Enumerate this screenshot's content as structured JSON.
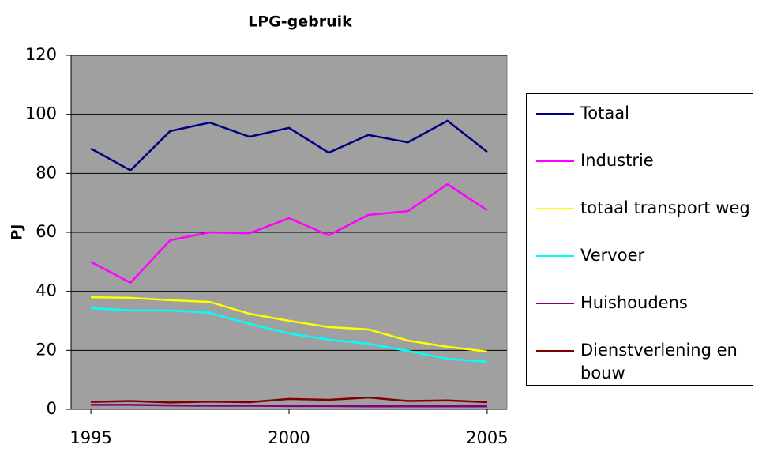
{
  "chart_data": {
    "type": "line",
    "title": "LPG-gebruik",
    "y_label": "PJ",
    "x": [
      1995,
      1996,
      1997,
      1998,
      1999,
      2000,
      2001,
      2002,
      2003,
      2004,
      2005
    ],
    "xlim": [
      1994.5,
      2005.5
    ],
    "xticks": [
      1995,
      2000,
      2005
    ],
    "ylim": [
      0,
      120
    ],
    "yticks": [
      0,
      20,
      40,
      60,
      80,
      100,
      120
    ],
    "grid": true,
    "series": [
      {
        "name": "Totaal",
        "color": "#000080",
        "values": [
          88.4,
          81,
          94.3,
          97.2,
          92.4,
          95.4,
          87,
          93,
          90.5,
          97.8,
          87.3
        ]
      },
      {
        "name": "Industrie",
        "color": "#ff00ff",
        "values": [
          50,
          42.9,
          57.3,
          60,
          59.7,
          64.8,
          59,
          65.9,
          67.2,
          76.3,
          67.5
        ]
      },
      {
        "name": "totaal transport weg",
        "color": "#ffff00",
        "values": [
          38,
          37.8,
          37,
          36.4,
          32.4,
          30,
          27.9,
          27.1,
          23.3,
          21.2,
          19.6
        ]
      },
      {
        "name": "Vervoer",
        "color": "#00ffff",
        "values": [
          34.3,
          33.5,
          33.5,
          32.7,
          29,
          25.7,
          23.6,
          22.2,
          19.8,
          17.1,
          16.1
        ]
      },
      {
        "name": "Huishoudens",
        "color": "#800080",
        "values": [
          1.5,
          1.5,
          1.3,
          1.2,
          1.2,
          1.1,
          1.1,
          1.0,
          1.0,
          1.0,
          1.0
        ]
      },
      {
        "name": "Dienstverlening en bouw",
        "color": "#800000",
        "values": [
          2.5,
          2.8,
          2.3,
          2.6,
          2.4,
          3.5,
          3.2,
          4.0,
          2.8,
          3.0,
          2.4
        ]
      }
    ]
  }
}
